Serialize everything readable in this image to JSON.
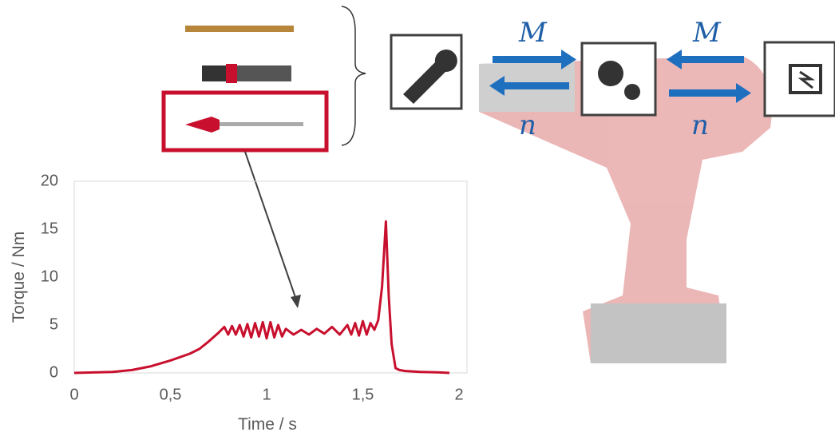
{
  "chart_data": {
    "type": "line",
    "xlabel": "Time / s",
    "ylabel": "Torque / Nm",
    "x": [
      0,
      0.1,
      0.2,
      0.3,
      0.4,
      0.5,
      0.6,
      0.65,
      0.7,
      0.75,
      0.78,
      0.8,
      0.82,
      0.84,
      0.86,
      0.88,
      0.9,
      0.92,
      0.94,
      0.96,
      0.98,
      1.0,
      1.02,
      1.04,
      1.06,
      1.08,
      1.1,
      1.14,
      1.18,
      1.22,
      1.26,
      1.3,
      1.34,
      1.38,
      1.42,
      1.44,
      1.46,
      1.48,
      1.5,
      1.52,
      1.54,
      1.56,
      1.58,
      1.6,
      1.62,
      1.635,
      1.65,
      1.67,
      1.69,
      1.72,
      1.8,
      1.9,
      1.95
    ],
    "values": [
      0,
      0.05,
      0.1,
      0.3,
      0.7,
      1.3,
      2.0,
      2.5,
      3.3,
      4.2,
      4.8,
      4.0,
      4.9,
      4.0,
      5.0,
      3.8,
      5.1,
      3.7,
      5.2,
      3.8,
      5.3,
      3.6,
      5.3,
      3.7,
      5.0,
      3.8,
      4.6,
      4.0,
      4.5,
      4.0,
      4.6,
      4.1,
      4.8,
      4.0,
      5.0,
      4.0,
      5.2,
      3.9,
      5.4,
      4.0,
      5.2,
      4.5,
      5.5,
      9.0,
      15.8,
      8.0,
      3.0,
      0.5,
      0.3,
      0.2,
      0.1,
      0.05,
      0
    ],
    "color": "#c8102e",
    "xlim": [
      0,
      2
    ],
    "ylim": [
      0,
      20
    ],
    "xticks": [
      0,
      {
        "value": 0.5,
        "label": "0,5"
      },
      1,
      {
        "value": 1.5,
        "label": "1,5"
      },
      2
    ],
    "yticks": [
      0,
      5,
      10,
      15,
      20
    ]
  },
  "diagram": {
    "labels": [
      "M",
      "M",
      "n",
      "n"
    ]
  }
}
